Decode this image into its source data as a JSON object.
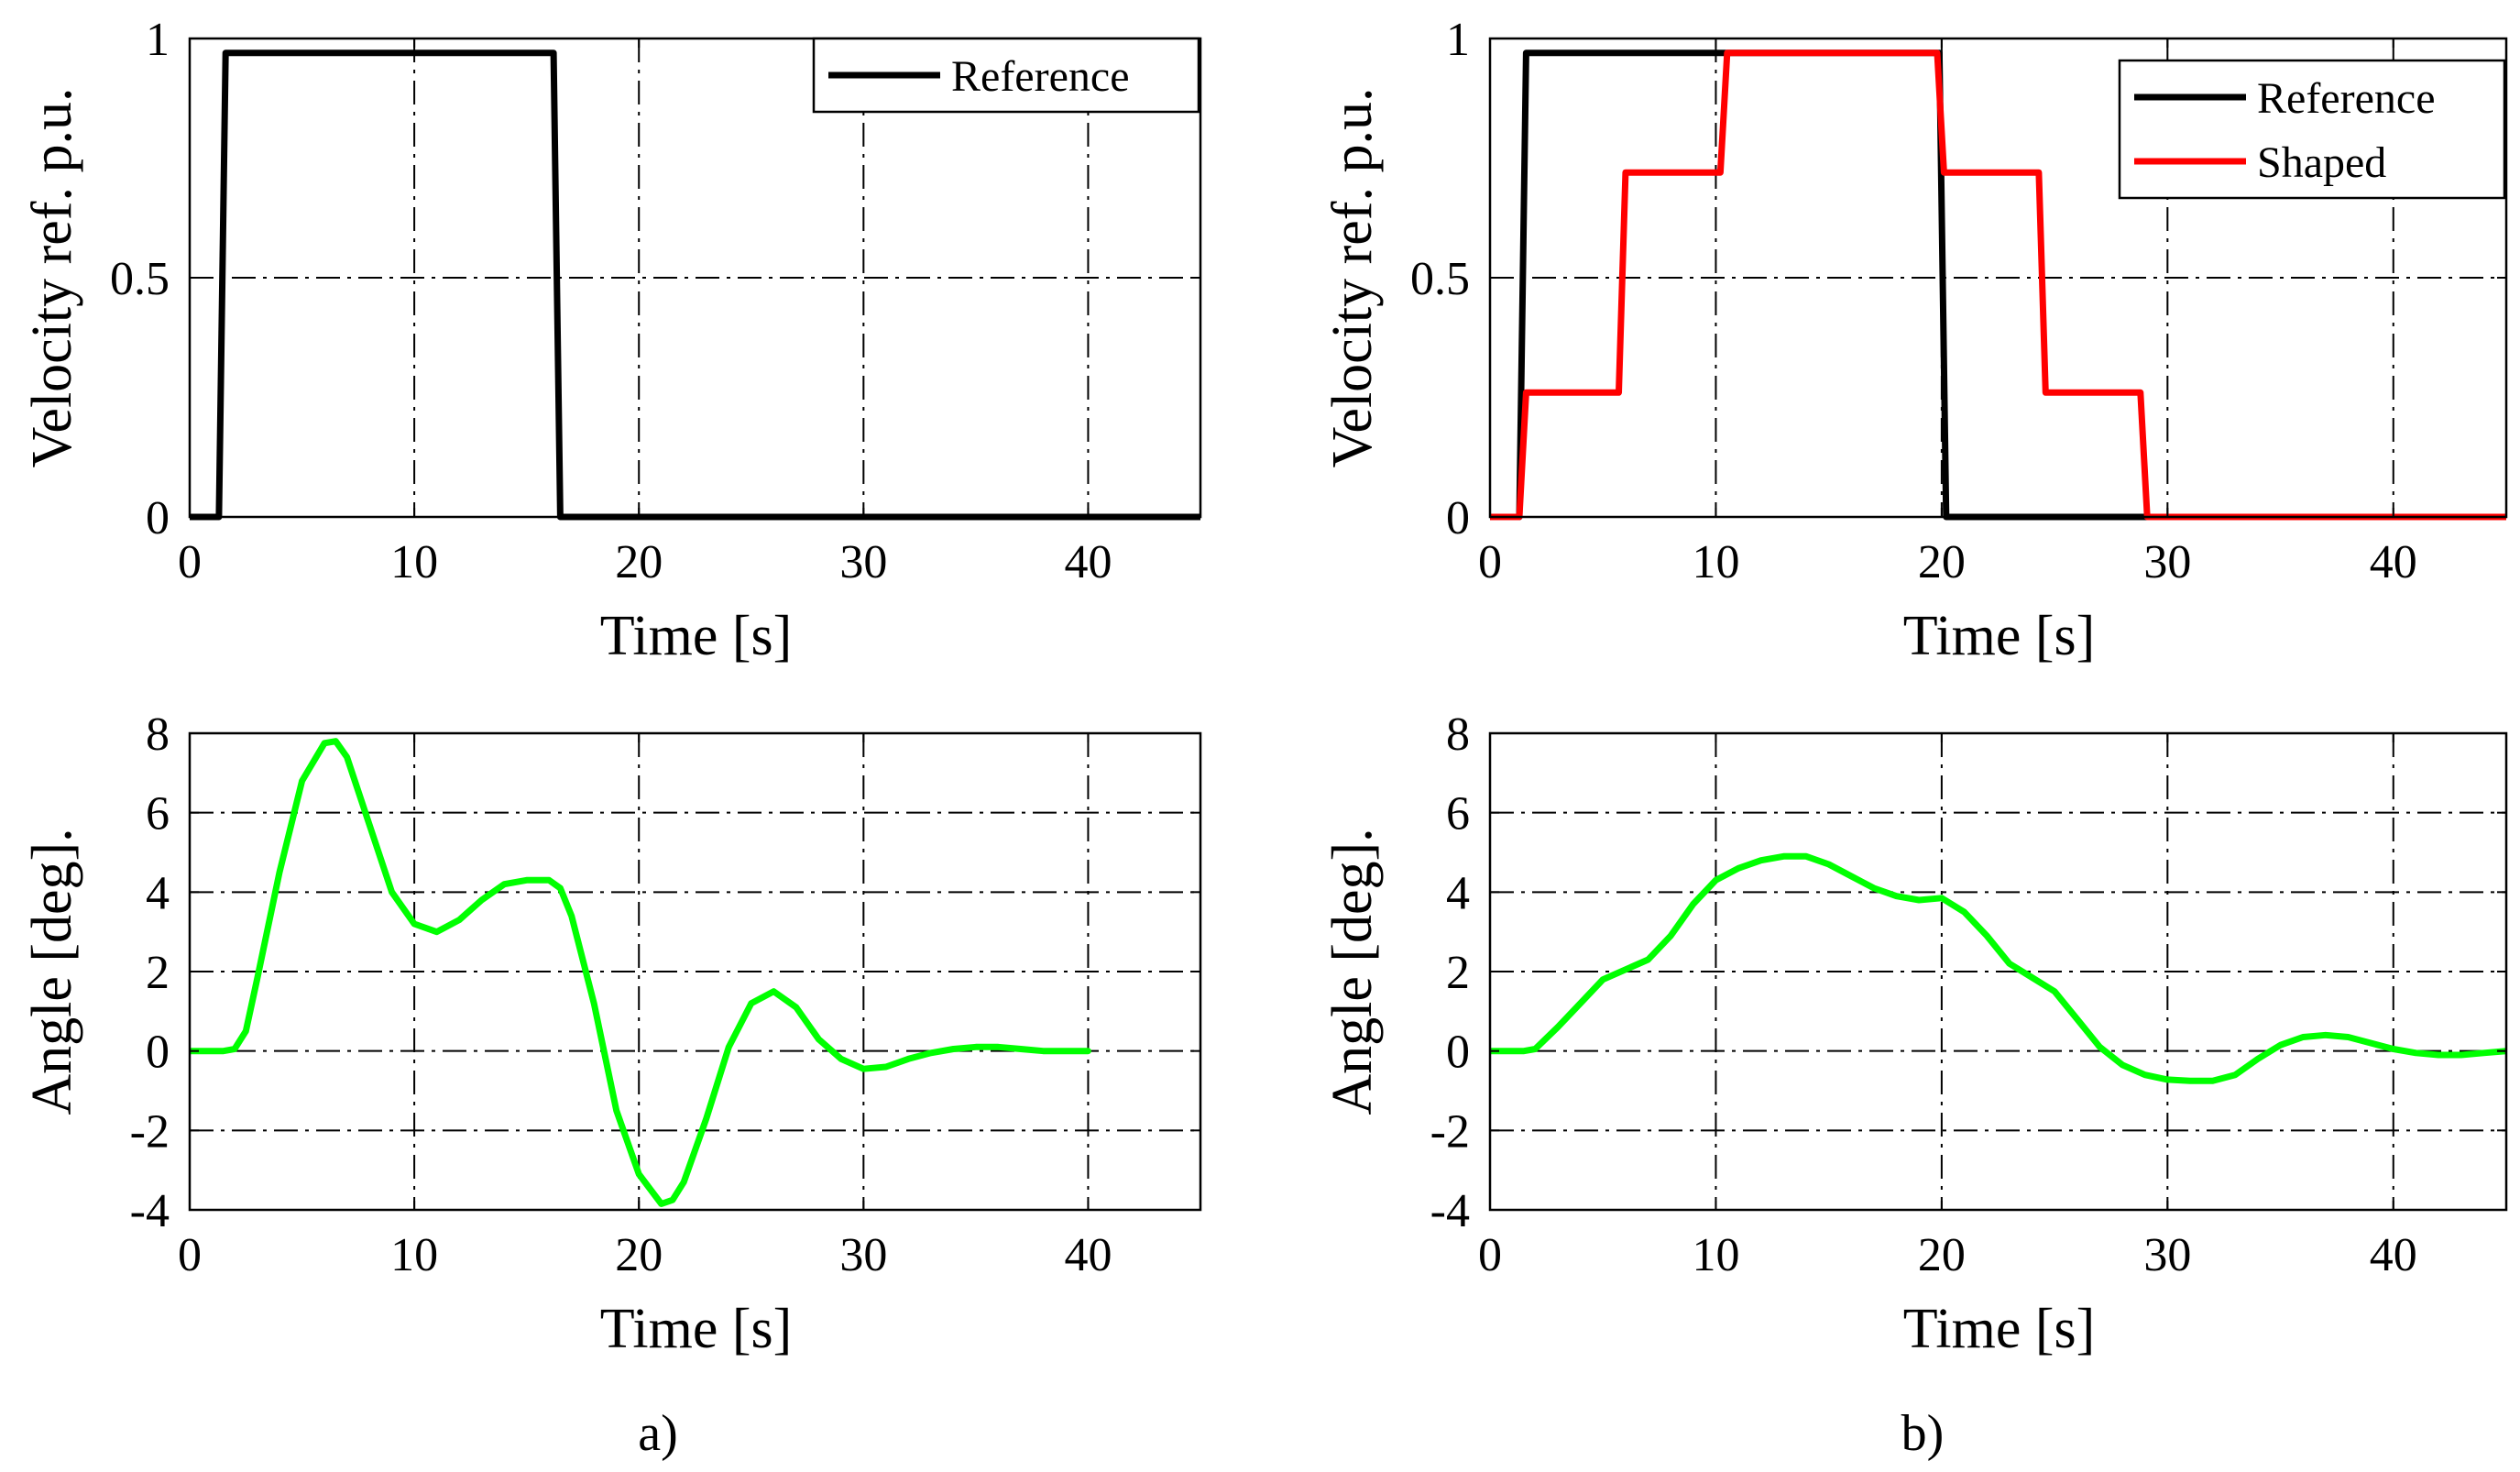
{
  "colors": {
    "reference": "#000000",
    "shaped": "#ff0000",
    "angle": "#00ff00"
  },
  "panel_labels": [
    "a)",
    "b)"
  ],
  "chart_data": [
    {
      "id": "a-top",
      "type": "line",
      "xlabel": "Time [s]",
      "ylabel": "Velocity ref. p.u.",
      "xlim": [
        0,
        45
      ],
      "ylim": [
        0,
        1
      ],
      "xticks": [
        0,
        10,
        20,
        30,
        40
      ],
      "xtick_labels": [
        "0",
        "10",
        "20",
        "30",
        "40"
      ],
      "yticks": [
        0,
        0.5,
        1
      ],
      "ytick_labels": [
        "0",
        "0.5",
        "1"
      ],
      "legend_location": "top-right",
      "series": [
        {
          "name": "Reference",
          "color": "#000000",
          "x": [
            0,
            1.3,
            1.6,
            16.2,
            16.5,
            45
          ],
          "y": [
            0,
            0,
            0.97,
            0.97,
            0,
            0
          ]
        }
      ]
    },
    {
      "id": "a-bottom",
      "type": "line",
      "xlabel": "Time [s]",
      "ylabel": "Angle [deg].",
      "xlim": [
        0,
        45
      ],
      "ylim": [
        -4,
        8
      ],
      "xticks": [
        0,
        10,
        20,
        30,
        40
      ],
      "xtick_labels": [
        "0",
        "10",
        "20",
        "30",
        "40"
      ],
      "yticks": [
        -4,
        -2,
        0,
        2,
        4,
        6,
        8
      ],
      "ytick_labels": [
        "-4",
        "-2",
        "0",
        "2",
        "4",
        "6",
        "8"
      ],
      "series": [
        {
          "name": "Angle",
          "color": "#00ff00",
          "x": [
            0,
            1.5,
            2,
            2.5,
            3,
            4,
            5,
            6,
            6.5,
            7,
            8,
            9,
            10,
            11,
            12,
            13,
            14,
            15,
            16,
            16.5,
            17,
            18,
            19,
            20,
            21,
            21.5,
            22,
            23,
            24,
            25,
            26,
            27,
            28,
            29,
            30,
            31,
            32,
            33,
            34,
            35,
            36,
            37,
            38,
            39,
            40
          ],
          "y": [
            0,
            0,
            0.05,
            0.5,
            1.8,
            4.5,
            6.8,
            7.75,
            7.8,
            7.4,
            5.7,
            4.0,
            3.2,
            3.0,
            3.3,
            3.8,
            4.2,
            4.3,
            4.3,
            4.1,
            3.4,
            1.2,
            -1.5,
            -3.1,
            -3.85,
            -3.75,
            -3.3,
            -1.7,
            0.1,
            1.2,
            1.5,
            1.1,
            0.3,
            -0.2,
            -0.45,
            -0.4,
            -0.2,
            -0.05,
            0.05,
            0.1,
            0.1,
            0.05,
            0,
            0,
            0
          ]
        }
      ]
    },
    {
      "id": "b-top",
      "type": "line",
      "xlabel": "Time [s]",
      "ylabel": "Velocity ref. p.u.",
      "xlim": [
        0,
        45
      ],
      "ylim": [
        0,
        1
      ],
      "xticks": [
        0,
        10,
        20,
        30,
        40
      ],
      "xtick_labels": [
        "0",
        "10",
        "20",
        "30",
        "40"
      ],
      "yticks": [
        0,
        0.5,
        1
      ],
      "ytick_labels": [
        "0",
        "0.5",
        "1"
      ],
      "legend_location": "top-right",
      "series": [
        {
          "name": "Reference",
          "color": "#000000",
          "x": [
            0,
            1.3,
            1.6,
            19.9,
            20.2,
            45
          ],
          "y": [
            0,
            0,
            0.97,
            0.97,
            0,
            0
          ]
        },
        {
          "name": "Shaped",
          "color": "#ff0000",
          "x": [
            0,
            1.3,
            1.6,
            5.7,
            6.0,
            10.2,
            10.5,
            19.8,
            20.1,
            24.3,
            24.6,
            28.8,
            29.1,
            45
          ],
          "y": [
            0,
            0,
            0.26,
            0.26,
            0.72,
            0.72,
            0.97,
            0.97,
            0.72,
            0.72,
            0.26,
            0.26,
            0,
            0
          ]
        }
      ]
    },
    {
      "id": "b-bottom",
      "type": "line",
      "xlabel": "Time [s]",
      "ylabel": "Angle [deg].",
      "xlim": [
        0,
        45
      ],
      "ylim": [
        -4,
        8
      ],
      "xticks": [
        0,
        10,
        20,
        30,
        40
      ],
      "xtick_labels": [
        "0",
        "10",
        "20",
        "30",
        "40"
      ],
      "yticks": [
        -4,
        -2,
        0,
        2,
        4,
        6,
        8
      ],
      "ytick_labels": [
        "-4",
        "-2",
        "0",
        "2",
        "4",
        "6",
        "8"
      ],
      "series": [
        {
          "name": "Angle",
          "color": "#00ff00",
          "x": [
            0,
            1.5,
            2,
            3,
            4,
            5,
            6,
            7,
            8,
            9,
            10,
            11,
            12,
            13,
            14,
            15,
            16,
            17,
            18,
            19,
            20,
            21,
            22,
            23,
            24,
            25,
            26,
            27,
            28,
            29,
            30,
            31,
            32,
            33,
            34,
            35,
            36,
            37,
            38,
            39,
            40,
            41,
            42,
            43,
            44,
            45
          ],
          "y": [
            0,
            0,
            0.05,
            0.6,
            1.2,
            1.8,
            2.05,
            2.3,
            2.9,
            3.7,
            4.3,
            4.6,
            4.8,
            4.9,
            4.9,
            4.7,
            4.4,
            4.1,
            3.9,
            3.8,
            3.85,
            3.5,
            2.9,
            2.2,
            1.85,
            1.5,
            0.8,
            0.1,
            -0.35,
            -0.6,
            -0.72,
            -0.75,
            -0.75,
            -0.6,
            -0.2,
            0.15,
            0.35,
            0.4,
            0.35,
            0.2,
            0.05,
            -0.05,
            -0.1,
            -0.1,
            -0.05,
            0
          ]
        }
      ]
    }
  ]
}
